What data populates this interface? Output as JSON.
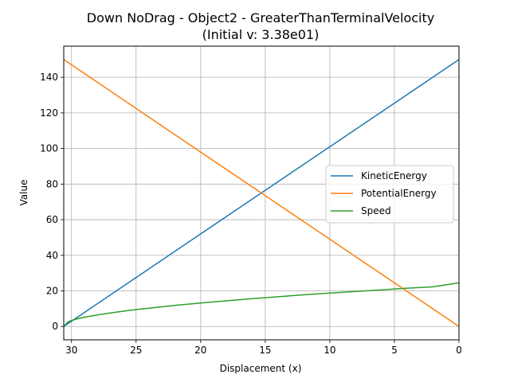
{
  "chart_data": {
    "type": "line",
    "title": "Down NoDrag - Object2 - GreaterThanTerminalVelocity",
    "subtitle": "(Initial v: 3.38e01)",
    "xlabel": "Displacement (x)",
    "ylabel": "Value",
    "xlim": [
      30.6,
      0
    ],
    "ylim": [
      -7.5,
      157.5
    ],
    "x_inverted": true,
    "xticks": [
      30,
      25,
      20,
      15,
      10,
      5,
      0
    ],
    "yticks": [
      0,
      20,
      40,
      60,
      80,
      100,
      120,
      140
    ],
    "grid": true,
    "legend_position": "center-right",
    "series": [
      {
        "name": "KineticEnergy",
        "color": "#1f77b4",
        "x": [
          30.6,
          25,
          20,
          15,
          10,
          5,
          0
        ],
        "values": [
          0,
          27.5,
          52,
          76.5,
          101,
          125.5,
          150
        ]
      },
      {
        "name": "PotentialEnergy",
        "color": "#ff7f0e",
        "x": [
          30.6,
          25,
          20,
          15,
          10,
          5,
          0
        ],
        "values": [
          150,
          122.5,
          98,
          73.5,
          49,
          24.5,
          0
        ]
      },
      {
        "name": "Speed",
        "color": "#2ca02c",
        "x": [
          30.6,
          30.3,
          30,
          29.5,
          29,
          28,
          27,
          26,
          25,
          24,
          22,
          20,
          18,
          16,
          14,
          12,
          10,
          8,
          6,
          4,
          2,
          0
        ],
        "values": [
          0,
          2.4,
          3.4,
          4.4,
          5.2,
          6.5,
          7.6,
          8.6,
          9.5,
          10.3,
          11.8,
          13.2,
          14.4,
          15.6,
          16.7,
          17.8,
          18.8,
          19.7,
          20.6,
          21.5,
          22.3,
          24.5
        ]
      }
    ]
  }
}
